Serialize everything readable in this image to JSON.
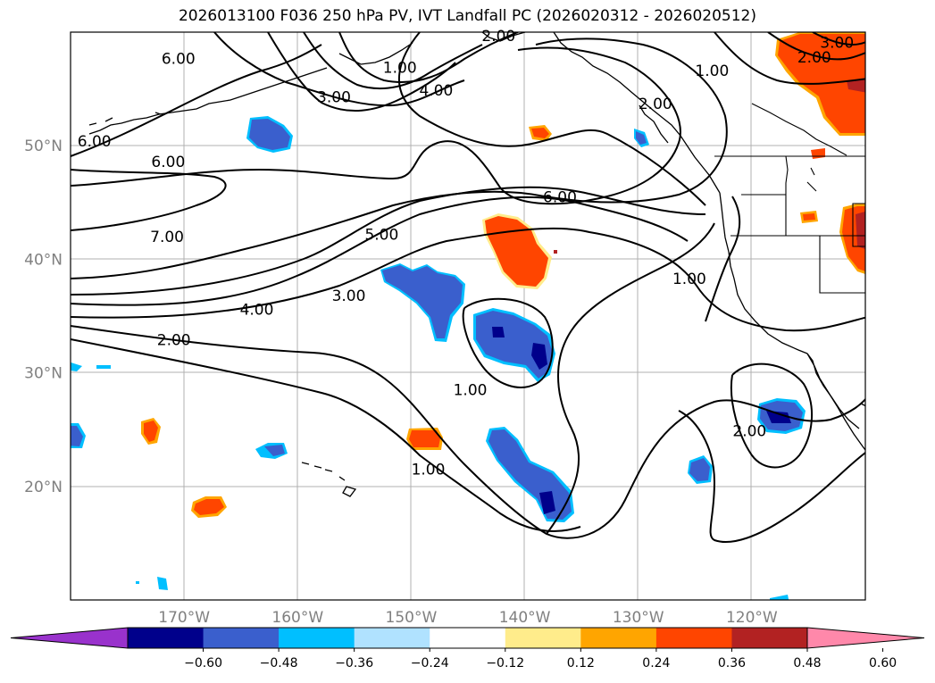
{
  "title": "2026013100 F036 250 hPa PV, IVT Landfall PC (2026020312 - 2026020512)",
  "axes": {
    "lon_labels": [
      "170°W",
      "160°W",
      "150°W",
      "140°W",
      "130°W",
      "120°W"
    ],
    "lat_labels": [
      "50°N",
      "40°N",
      "30°N",
      "20°N"
    ],
    "lon_range": [
      -180,
      -110
    ],
    "lat_range": [
      10,
      60
    ]
  },
  "contour_labels": [
    {
      "text": "6.00",
      "lon": -170.5,
      "lat": 57.7
    },
    {
      "text": "3.00",
      "lon": -156.8,
      "lat": 54.3
    },
    {
      "text": "1.00",
      "lon": -151.0,
      "lat": 56.9
    },
    {
      "text": "2.00",
      "lon": -142.3,
      "lat": 59.7
    },
    {
      "text": "4.00",
      "lon": -147.8,
      "lat": 54.9
    },
    {
      "text": "2.00",
      "lon": -128.5,
      "lat": 53.7
    },
    {
      "text": "6.00",
      "lon": -177.9,
      "lat": 50.4
    },
    {
      "text": "6.00",
      "lon": -171.4,
      "lat": 48.6
    },
    {
      "text": "7.00",
      "lon": -171.5,
      "lat": 42.0
    },
    {
      "text": "6.00",
      "lon": -136.9,
      "lat": 45.5
    },
    {
      "text": "5.00",
      "lon": -152.6,
      "lat": 42.2
    },
    {
      "text": "3.00",
      "lon": -155.5,
      "lat": 36.8
    },
    {
      "text": "4.00",
      "lon": -163.6,
      "lat": 35.6
    },
    {
      "text": "2.00",
      "lon": -170.9,
      "lat": 32.9
    },
    {
      "text": "1.00",
      "lon": -125.5,
      "lat": 38.3
    },
    {
      "text": "1.00",
      "lon": -123.5,
      "lat": 56.6
    },
    {
      "text": "2.00",
      "lon": -114.5,
      "lat": 57.8
    },
    {
      "text": "3.00",
      "lon": -112.5,
      "lat": 59.1
    },
    {
      "text": "1.00",
      "lon": -144.8,
      "lat": 28.5
    },
    {
      "text": "1.00",
      "lon": -148.5,
      "lat": 21.5
    },
    {
      "text": "2.00",
      "lon": -120.2,
      "lat": 24.9
    }
  ],
  "colorbar": {
    "colors": [
      "#9932cc",
      "#00008b",
      "#3a5fcd",
      "#00bfff",
      "#b0e2ff",
      "#ffffff",
      "#ffec8b",
      "#ffa500",
      "#ff4500",
      "#b22222",
      "#ff88aa"
    ],
    "tick_labels": [
      "−0.60",
      "−0.48",
      "−0.36",
      "−0.24",
      "−0.12",
      "0.12",
      "0.24",
      "0.36",
      "0.48",
      "0.60"
    ],
    "tick_values": [
      -0.6,
      -0.48,
      -0.36,
      -0.24,
      -0.12,
      0.12,
      0.24,
      0.36,
      0.48,
      0.6
    ]
  },
  "anomaly_blobs": [
    {
      "sign": "neg",
      "lon": -164.5,
      "lat": 50.8,
      "value": -0.4
    },
    {
      "sign": "neg",
      "lon": -147.0,
      "lat": 37.3,
      "value": -0.42
    },
    {
      "sign": "neg",
      "lon": -140.0,
      "lat": 32.0,
      "value": -0.55
    },
    {
      "sign": "neg",
      "lon": -139.5,
      "lat": 21.0,
      "value": -0.55
    },
    {
      "sign": "neg",
      "lon": -118.8,
      "lat": 26.2,
      "value": -0.52
    },
    {
      "sign": "neg",
      "lon": -125.0,
      "lat": 21.5,
      "value": -0.4
    },
    {
      "sign": "neg",
      "lon": -162.0,
      "lat": 23.0,
      "value": -0.3
    },
    {
      "sign": "neg",
      "lon": -180.0,
      "lat": 24.5,
      "value": -0.4
    },
    {
      "sign": "neg",
      "lon": -129.5,
      "lat": 50.8,
      "value": -0.35
    },
    {
      "sign": "pos",
      "lon": -140.5,
      "lat": 40.5,
      "value": 0.42
    },
    {
      "sign": "pos",
      "lon": -118.0,
      "lat": 56.5,
      "value": 0.45
    },
    {
      "sign": "pos",
      "lon": -111.0,
      "lat": 41.5,
      "value": 0.45
    },
    {
      "sign": "pos",
      "lon": -149.0,
      "lat": 24.3,
      "value": 0.4
    },
    {
      "sign": "pos",
      "lon": -170.0,
      "lat": 25.0,
      "value": 0.4
    },
    {
      "sign": "pos",
      "lon": -167.7,
      "lat": 18.0,
      "value": 0.4
    },
    {
      "sign": "pos",
      "lon": -138.9,
      "lat": 51.3,
      "value": 0.4
    },
    {
      "sign": "pos",
      "lon": -114.0,
      "lat": 42.0,
      "value": 0.38
    },
    {
      "sign": "pos",
      "lon": -115.0,
      "lat": 48.0,
      "value": 0.38
    }
  ]
}
